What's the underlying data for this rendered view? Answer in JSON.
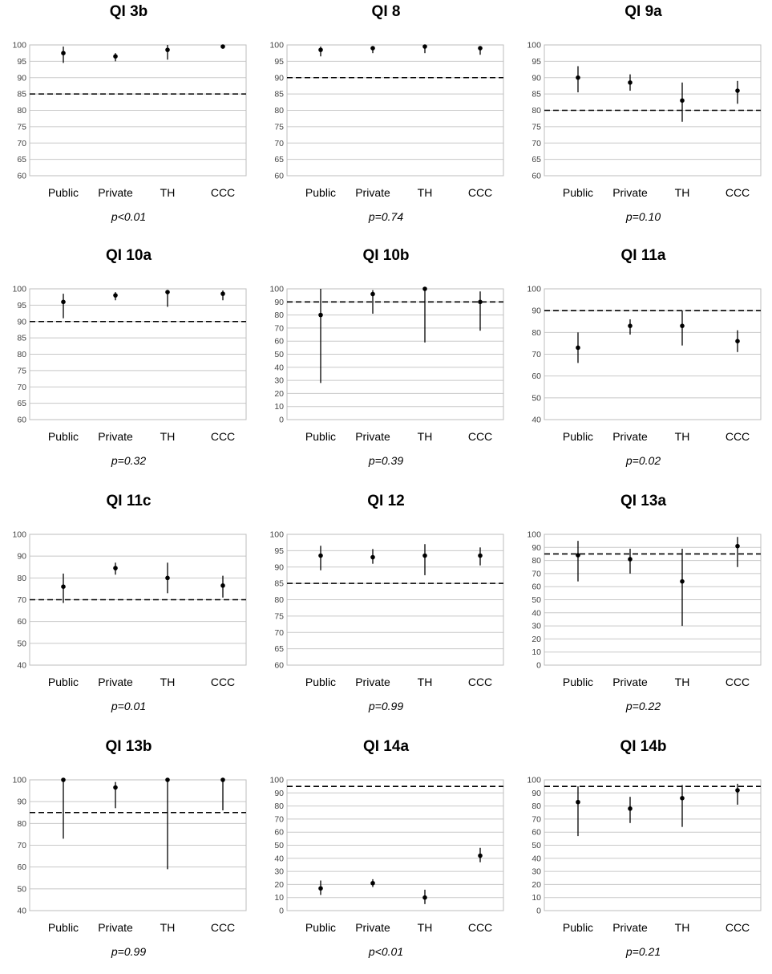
{
  "chart_data": [
    {
      "type": "scatter",
      "title": "QI 3b",
      "categories": [
        "Public",
        "Private",
        "TH",
        "CCC"
      ],
      "ylim": [
        60,
        100
      ],
      "ytick_step": 5,
      "threshold": 85,
      "points": [
        {
          "y": 97.5,
          "lo": 94.5,
          "hi": 99.5
        },
        {
          "y": 96.5,
          "lo": 95,
          "hi": 97.5
        },
        {
          "y": 98.5,
          "lo": 95.5,
          "hi": 100
        },
        {
          "y": 99.5,
          "lo": 99,
          "hi": 100
        }
      ],
      "pvalue": "p<0.01"
    },
    {
      "type": "scatter",
      "title": "QI 8",
      "categories": [
        "Public",
        "Private",
        "TH",
        "CCC"
      ],
      "ylim": [
        60,
        100
      ],
      "ytick_step": 5,
      "threshold": 90,
      "points": [
        {
          "y": 98.5,
          "lo": 96.5,
          "hi": 99.5
        },
        {
          "y": 99,
          "lo": 97.5,
          "hi": 99.5
        },
        {
          "y": 99.5,
          "lo": 97.5,
          "hi": 100
        },
        {
          "y": 99,
          "lo": 97,
          "hi": 99.5
        }
      ],
      "pvalue": "p=0.74"
    },
    {
      "type": "scatter",
      "title": "QI 9a",
      "categories": [
        "Public",
        "Private",
        "TH",
        "CCC"
      ],
      "ylim": [
        60,
        100
      ],
      "ytick_step": 5,
      "threshold": 80,
      "points": [
        {
          "y": 90,
          "lo": 85.5,
          "hi": 93.5
        },
        {
          "y": 88.5,
          "lo": 86,
          "hi": 91
        },
        {
          "y": 83,
          "lo": 76.5,
          "hi": 88.5
        },
        {
          "y": 86,
          "lo": 82,
          "hi": 89
        }
      ],
      "pvalue": "p=0.10"
    },
    {
      "type": "scatter",
      "title": "QI 10a",
      "categories": [
        "Public",
        "Private",
        "TH",
        "CCC"
      ],
      "ylim": [
        60,
        100
      ],
      "ytick_step": 5,
      "threshold": 90,
      "points": [
        {
          "y": 96,
          "lo": 91,
          "hi": 98.5
        },
        {
          "y": 98,
          "lo": 96.5,
          "hi": 99
        },
        {
          "y": 99,
          "lo": 94.5,
          "hi": 99.5
        },
        {
          "y": 98.5,
          "lo": 96.5,
          "hi": 99.5
        }
      ],
      "pvalue": "p=0.32"
    },
    {
      "type": "scatter",
      "title": "QI 10b",
      "categories": [
        "Public",
        "Private",
        "TH",
        "CCC"
      ],
      "ylim": [
        0,
        100
      ],
      "ytick_step": 10,
      "threshold": 90,
      "points": [
        {
          "y": 80,
          "lo": 28,
          "hi": 100
        },
        {
          "y": 96,
          "lo": 81,
          "hi": 99
        },
        {
          "y": 100,
          "lo": 59,
          "hi": 100
        },
        {
          "y": 90,
          "lo": 68,
          "hi": 98
        }
      ],
      "pvalue": "p=0.39"
    },
    {
      "type": "scatter",
      "title": "QI 11a",
      "categories": [
        "Public",
        "Private",
        "TH",
        "CCC"
      ],
      "ylim": [
        40,
        100
      ],
      "ytick_step": 10,
      "threshold": 90,
      "points": [
        {
          "y": 73,
          "lo": 66,
          "hi": 80
        },
        {
          "y": 83,
          "lo": 79,
          "hi": 86
        },
        {
          "y": 83,
          "lo": 74,
          "hi": 90
        },
        {
          "y": 76,
          "lo": 71,
          "hi": 81
        }
      ],
      "pvalue": "p=0.02"
    },
    {
      "type": "scatter",
      "title": "QI 11c",
      "categories": [
        "Public",
        "Private",
        "TH",
        "CCC"
      ],
      "ylim": [
        40,
        100
      ],
      "ytick_step": 10,
      "threshold": 70,
      "points": [
        {
          "y": 76,
          "lo": 68.5,
          "hi": 82
        },
        {
          "y": 84.5,
          "lo": 81.5,
          "hi": 87
        },
        {
          "y": 80,
          "lo": 73,
          "hi": 87
        },
        {
          "y": 76.5,
          "lo": 71,
          "hi": 81
        }
      ],
      "pvalue": "p=0.01"
    },
    {
      "type": "scatter",
      "title": "QI 12",
      "categories": [
        "Public",
        "Private",
        "TH",
        "CCC"
      ],
      "ylim": [
        60,
        100
      ],
      "ytick_step": 5,
      "threshold": 85,
      "points": [
        {
          "y": 93.5,
          "lo": 89,
          "hi": 96.5
        },
        {
          "y": 93,
          "lo": 91,
          "hi": 95.5
        },
        {
          "y": 93.5,
          "lo": 87.5,
          "hi": 97
        },
        {
          "y": 93.5,
          "lo": 90.5,
          "hi": 96
        }
      ],
      "pvalue": "p=0.99"
    },
    {
      "type": "scatter",
      "title": "QI 13a",
      "categories": [
        "Public",
        "Private",
        "TH",
        "CCC"
      ],
      "ylim": [
        0,
        100
      ],
      "ytick_step": 10,
      "threshold": 85,
      "points": [
        {
          "y": 84,
          "lo": 64,
          "hi": 95
        },
        {
          "y": 81,
          "lo": 70,
          "hi": 89
        },
        {
          "y": 64,
          "lo": 30,
          "hi": 89
        },
        {
          "y": 91,
          "lo": 75,
          "hi": 98
        }
      ],
      "pvalue": "p=0.22"
    },
    {
      "type": "scatter",
      "title": "QI 13b",
      "categories": [
        "Public",
        "Private",
        "TH",
        "CCC"
      ],
      "ylim": [
        40,
        100
      ],
      "ytick_step": 10,
      "threshold": 85,
      "points": [
        {
          "y": 100,
          "lo": 73,
          "hi": 100
        },
        {
          "y": 96.5,
          "lo": 87,
          "hi": 99
        },
        {
          "y": 100,
          "lo": 59,
          "hi": 100
        },
        {
          "y": 100,
          "lo": 86,
          "hi": 100
        }
      ],
      "pvalue": "p=0.99"
    },
    {
      "type": "scatter",
      "title": "QI 14a",
      "categories": [
        "Public",
        "Private",
        "TH",
        "CCC"
      ],
      "ylim": [
        0,
        100
      ],
      "ytick_step": 10,
      "threshold": 95,
      "points": [
        {
          "y": 17,
          "lo": 12,
          "hi": 23
        },
        {
          "y": 21,
          "lo": 18,
          "hi": 24
        },
        {
          "y": 10,
          "lo": 5,
          "hi": 16
        },
        {
          "y": 42,
          "lo": 37,
          "hi": 48
        }
      ],
      "pvalue": "p<0.01"
    },
    {
      "type": "scatter",
      "title": "QI 14b",
      "categories": [
        "Public",
        "Private",
        "TH",
        "CCC"
      ],
      "ylim": [
        0,
        100
      ],
      "ytick_step": 10,
      "threshold": 95,
      "points": [
        {
          "y": 83,
          "lo": 57,
          "hi": 95
        },
        {
          "y": 78,
          "lo": 67,
          "hi": 87
        },
        {
          "y": 86,
          "lo": 64,
          "hi": 96
        },
        {
          "y": 92,
          "lo": 81,
          "hi": 97
        }
      ],
      "pvalue": "p=0.21"
    }
  ]
}
